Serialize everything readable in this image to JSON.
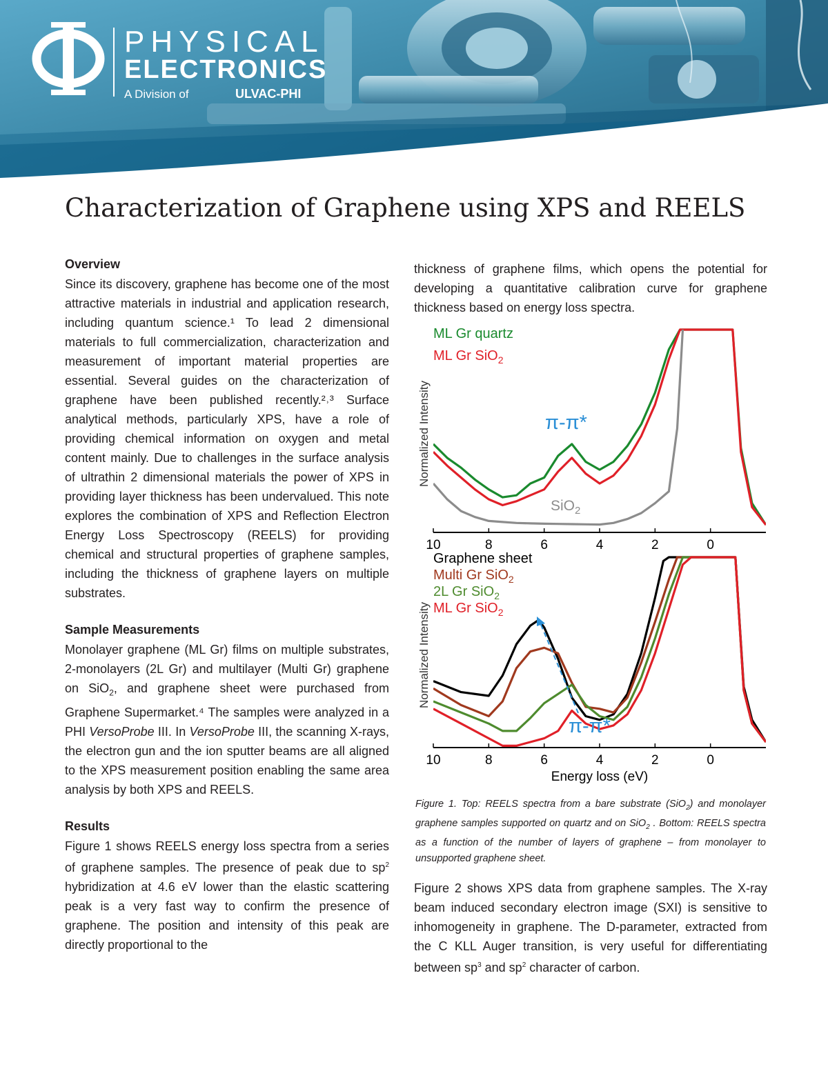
{
  "header": {
    "logo_symbol": "Φ",
    "logo_line1": "PHYSICAL",
    "logo_line2": "ELECTRONICS",
    "division_label": "A Division of",
    "division_company": "ULVAC-PHI"
  },
  "title": "Characterization of Graphene using XPS and REELS",
  "sections": {
    "overview_heading": "Overview",
    "overview_text": "Since its discovery, graphene has become one of the most attractive materials in industrial and application research, including quantum science.¹ To lead 2 dimensional materials to full commercialization, characterization and measurement of important material properties are essential. Several guides on the characterization of graphene have been published recently.²˒³ Surface analytical methods, particularly XPS, have a role of providing chemical information on oxygen and metal content mainly. Due to challenges in the surface analysis of ultrathin 2 dimensional materials the power of XPS in providing layer thickness has been undervalued. This note explores the combination of XPS and Reflection Electron Energy Loss Spectroscopy (REELS) for providing chemical and structural properties of graphene samples, including the thickness of graphene layers on multiple substrates.",
    "sample_heading": "Sample Measurements",
    "sample_text_1": "Monolayer graphene (ML Gr) films on multiple substrates, 2-monolayers (2L Gr) and multilayer (Multi Gr) graphene on SiO",
    "sample_text_sub": "2",
    "sample_text_2": ", and graphene sheet were purchased from Graphene Supermarket.⁴ The samples were analyzed in a PHI ",
    "sample_versoprobe_1": "VersoProbe",
    "sample_text_3": " III. In ",
    "sample_versoprobe_2": "VersoProbe",
    "sample_text_4": " III, the scanning X-rays, the electron gun and the ion sputter beams are all aligned to the XPS measurement position enabling the same area analysis by both XPS and REELS.",
    "results_heading": "Results",
    "results_text_1": "Figure 1 shows REELS energy loss spectra from a series of graphene samples. The presence of peak due to sp",
    "results_sup": "2",
    "results_text_2": " hybridization at 4.6 eV lower than the elastic scattering peak is a very fast way to confirm the presence of graphene. The position and intensity of this peak are directly proportional to the",
    "right_top_text": "thickness of graphene films, which opens the potential for developing a quantitative calibration curve for graphene thickness based on energy loss spectra.",
    "figure2_text_1": "Figure 2 shows XPS data from graphene samples. The X-ray beam induced secondary electron image (SXI) is sensitive to inhomogeneity in graphene. The D-parameter, extracted from the C KLL Auger transition, is very useful for differentiating between sp",
    "figure2_sup1": "3",
    "figure2_text_2": " and sp",
    "figure2_sup2": "2",
    "figure2_text_3": " character of carbon."
  },
  "caption": {
    "part1": "Figure 1. Top: REELS spectra from a bare substrate (SiO",
    "sub1": "2",
    "part2": ") and monolayer graphene samples supported on quartz and on SiO",
    "sub2": "2",
    "part3": " . Bottom: REELS spectra as a function of the number of layers of graphene – from monolayer to unsupported graphene sheet."
  },
  "chart_data": [
    {
      "type": "line",
      "ylabel": "Normalized Intensity",
      "xlabel": "",
      "xlim": [
        10,
        -2
      ],
      "x_ticks": [
        "10",
        "8",
        "6",
        "4",
        "2",
        "0"
      ],
      "annotation": "π-π*",
      "series": [
        {
          "name": "ML Gr quartz",
          "color": "#1a8a2e",
          "x": [
            10,
            9.5,
            9,
            8.5,
            8,
            7.5,
            7,
            6.5,
            6,
            5.5,
            5,
            4.5,
            4,
            3.5,
            3,
            2.5,
            2,
            1.5,
            1.1,
            0.8,
            -0.8,
            -1.1,
            -1.5,
            -2
          ],
          "y": [
            0.42,
            0.35,
            0.3,
            0.24,
            0.19,
            0.15,
            0.16,
            0.22,
            0.25,
            0.36,
            0.42,
            0.33,
            0.29,
            0.33,
            0.41,
            0.52,
            0.68,
            0.9,
            1.0,
            1.0,
            1.0,
            0.4,
            0.12,
            0.01
          ]
        },
        {
          "name": "ML Gr SiO",
          "name_sub": "2",
          "color": "#e02028",
          "x": [
            10,
            9.5,
            9,
            8.5,
            8,
            7.5,
            7,
            6.5,
            6,
            5.5,
            5,
            4.5,
            4,
            3.5,
            3,
            2.5,
            2,
            1.5,
            1.1,
            0.8,
            -0.8,
            -1.1,
            -1.5,
            -2
          ],
          "y": [
            0.38,
            0.31,
            0.25,
            0.19,
            0.14,
            0.11,
            0.13,
            0.16,
            0.19,
            0.28,
            0.35,
            0.27,
            0.22,
            0.26,
            0.34,
            0.46,
            0.62,
            0.85,
            1.0,
            1.0,
            1.0,
            0.38,
            0.1,
            0.01
          ]
        },
        {
          "name": "SiO",
          "name_sub": "2",
          "color": "#8c8c8c",
          "x": [
            10,
            9.5,
            9,
            8.5,
            8,
            7.5,
            7,
            6.5,
            6,
            5.5,
            5,
            4.5,
            4,
            3.5,
            3,
            2.5,
            2,
            1.5,
            1.2,
            1.0
          ],
          "y": [
            0.22,
            0.14,
            0.08,
            0.05,
            0.03,
            0.025,
            0.02,
            0.018,
            0.016,
            0.015,
            0.014,
            0.013,
            0.012,
            0.02,
            0.04,
            0.07,
            0.12,
            0.18,
            0.5,
            1.0
          ]
        }
      ]
    },
    {
      "type": "line",
      "ylabel": "Normalized Intensity",
      "xlabel": "Energy loss (eV)",
      "xlim": [
        10,
        -2
      ],
      "x_ticks": [
        "10",
        "8",
        "6",
        "4",
        "2",
        "0"
      ],
      "annotation": "π-π*",
      "series": [
        {
          "name": "Graphene sheet",
          "color": "#000000",
          "x": [
            10,
            9,
            8,
            7.5,
            7,
            6.5,
            6.2,
            6,
            5.5,
            5,
            4.5,
            4,
            3.5,
            3,
            2.5,
            2,
            1.7,
            1.5,
            -0.9,
            -1.2,
            -1.5,
            -2
          ],
          "y": [
            0.33,
            0.27,
            0.25,
            0.36,
            0.53,
            0.63,
            0.66,
            0.62,
            0.45,
            0.24,
            0.14,
            0.12,
            0.15,
            0.26,
            0.48,
            0.78,
            0.98,
            1.0,
            1.0,
            0.3,
            0.12,
            0.0
          ]
        },
        {
          "name": "Multi Gr SiO",
          "name_sub": "2",
          "color": "#a0391e",
          "x": [
            10,
            9,
            8,
            7.5,
            7,
            6.5,
            6,
            5.5,
            5,
            4.5,
            4,
            3.5,
            3,
            2.5,
            2,
            1.5,
            1.2,
            1.0,
            -0.9,
            -1.2,
            -1.5,
            -2
          ],
          "y": [
            0.29,
            0.2,
            0.14,
            0.22,
            0.4,
            0.49,
            0.51,
            0.48,
            0.32,
            0.19,
            0.18,
            0.16,
            0.24,
            0.43,
            0.65,
            0.88,
            1.0,
            1.0,
            1.0,
            0.28,
            0.1,
            0.0
          ]
        },
        {
          "name": "2L Gr SiO",
          "name_sub": "2",
          "color": "#4e8b2e",
          "x": [
            10,
            9,
            8,
            7.5,
            7,
            6.5,
            6,
            5.5,
            5,
            4.5,
            4,
            3.5,
            3,
            2.5,
            2,
            1.5,
            1.0,
            0.8,
            -0.9,
            -1.2,
            -1.5,
            -2
          ],
          "y": [
            0.22,
            0.16,
            0.1,
            0.06,
            0.06,
            0.13,
            0.21,
            0.26,
            0.31,
            0.2,
            0.14,
            0.12,
            0.19,
            0.35,
            0.56,
            0.8,
            1.0,
            1.0,
            1.0,
            0.28,
            0.1,
            0.0
          ]
        },
        {
          "name": "ML Gr SiO",
          "name_sub": "2",
          "color": "#e02028",
          "x": [
            10,
            9,
            8,
            7.5,
            7,
            6.5,
            6,
            5.5,
            5,
            4.5,
            4,
            3.5,
            3,
            2.5,
            2,
            1.5,
            1.0,
            0.7,
            -0.9,
            -1.2,
            -1.5,
            -2
          ],
          "y": [
            0.18,
            0.1,
            0.02,
            -0.02,
            -0.02,
            0.0,
            0.02,
            0.06,
            0.17,
            0.1,
            0.07,
            0.09,
            0.15,
            0.28,
            0.48,
            0.72,
            0.96,
            1.0,
            1.0,
            0.28,
            0.1,
            0.0
          ]
        }
      ]
    }
  ],
  "colors": {
    "banner_teal": "#2f8fb0",
    "annotation_blue": "#2b8fd6",
    "text": "#231f20"
  }
}
